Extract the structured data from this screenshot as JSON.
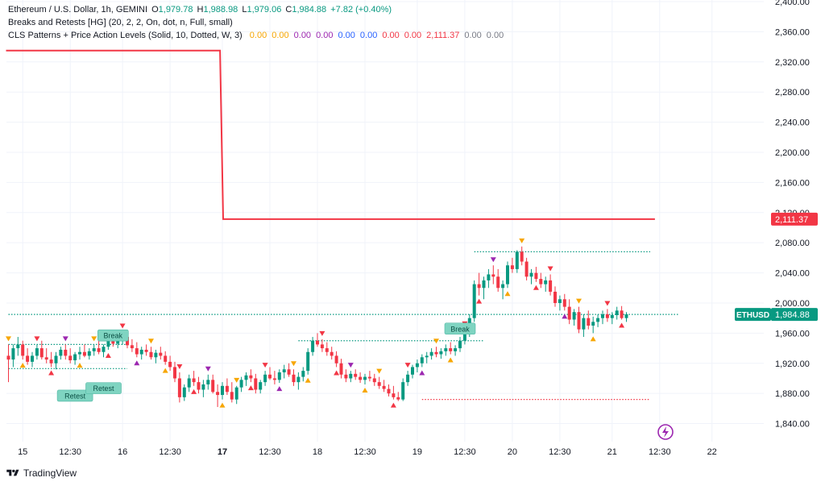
{
  "legend": {
    "title": "Ethereum / U.S. Dollar, 1h, GEMINI",
    "o_label": "O",
    "o": "1,979.78",
    "h_label": "H",
    "h": "1,988.98",
    "l_label": "L",
    "l": "1,979.06",
    "c_label": "C",
    "c": "1,984.88",
    "change": "+7.82 (+0.40%)",
    "indicator1": "Breaks and Retests [HG] (20, 2, 2, On, dot, n, Full, small)",
    "indicator2": "CLS Patterns + Price Action Levels (Solid, 10, Dotted, W, 3)",
    "indicator2_values": [
      {
        "v": "0.00",
        "color": "#f7a600"
      },
      {
        "v": "0.00",
        "color": "#f7a600"
      },
      {
        "v": "0.00",
        "color": "#9c27b0"
      },
      {
        "v": "0.00",
        "color": "#9c27b0"
      },
      {
        "v": "0.00",
        "color": "#2962ff"
      },
      {
        "v": "0.00",
        "color": "#2962ff"
      },
      {
        "v": "0.00",
        "color": "#f23645"
      },
      {
        "v": "0.00",
        "color": "#f23645"
      },
      {
        "v": "2,111.37",
        "color": "#f23645"
      },
      {
        "v": "0.00",
        "color": "#787b86"
      },
      {
        "v": "0.00",
        "color": "#787b86"
      }
    ]
  },
  "footer": {
    "brand": "TradingView"
  },
  "chart_data": {
    "type": "candlestick",
    "y_ticks": [
      "2,400.00",
      "2,360.00",
      "2,320.00",
      "2,280.00",
      "2,240.00",
      "2,200.00",
      "2,160.00",
      "2,120.00",
      "2,080.00",
      "2,040.00",
      "2,000.00",
      "1,960.00",
      "1,920.00",
      "1,880.00",
      "1,840.00"
    ],
    "y_tick_values": [
      2400,
      2360,
      2320,
      2280,
      2240,
      2200,
      2160,
      2120,
      2080,
      2040,
      2000,
      1960,
      1920,
      1880,
      1840
    ],
    "ylim": [
      1816,
      2400
    ],
    "x_ticks": [
      {
        "label": "15",
        "idx": 3,
        "bold": false
      },
      {
        "label": "12:30",
        "idx": 13,
        "bold": false
      },
      {
        "label": "16",
        "idx": 24,
        "bold": false
      },
      {
        "label": "12:30",
        "idx": 34,
        "bold": false
      },
      {
        "label": "17",
        "idx": 45,
        "bold": true
      },
      {
        "label": "12:30",
        "idx": 55,
        "bold": false
      },
      {
        "label": "18",
        "idx": 65,
        "bold": false
      },
      {
        "label": "12:30",
        "idx": 75,
        "bold": false
      },
      {
        "label": "19",
        "idx": 86,
        "bold": false
      },
      {
        "label": "12:30",
        "idx": 96,
        "bold": false
      },
      {
        "label": "20",
        "idx": 106,
        "bold": false
      },
      {
        "label": "12:30",
        "idx": 116,
        "bold": false
      },
      {
        "label": "21",
        "idx": 127,
        "bold": false
      },
      {
        "label": "12:30",
        "idx": 137,
        "bold": false
      },
      {
        "label": "22",
        "idx": 148,
        "bold": false
      }
    ],
    "ohlc": [
      [
        1930,
        1945,
        1895,
        1925
      ],
      [
        1925,
        1945,
        1915,
        1940
      ],
      [
        1940,
        1955,
        1930,
        1945
      ],
      [
        1945,
        1950,
        1925,
        1930
      ],
      [
        1930,
        1940,
        1918,
        1922
      ],
      [
        1922,
        1935,
        1915,
        1930
      ],
      [
        1930,
        1945,
        1925,
        1940
      ],
      [
        1940,
        1950,
        1925,
        1928
      ],
      [
        1928,
        1940,
        1920,
        1925
      ],
      [
        1925,
        1935,
        1915,
        1920
      ],
      [
        1920,
        1935,
        1912,
        1930
      ],
      [
        1930,
        1942,
        1925,
        1938
      ],
      [
        1938,
        1945,
        1925,
        1930
      ],
      [
        1930,
        1940,
        1920,
        1924
      ],
      [
        1924,
        1935,
        1918,
        1932
      ],
      [
        1932,
        1942,
        1925,
        1935
      ],
      [
        1935,
        1945,
        1928,
        1930
      ],
      [
        1930,
        1940,
        1925,
        1936
      ],
      [
        1936,
        1945,
        1930,
        1940
      ],
      [
        1940,
        1950,
        1932,
        1935
      ],
      [
        1935,
        1945,
        1928,
        1942
      ],
      [
        1942,
        1955,
        1938,
        1950
      ],
      [
        1950,
        1958,
        1942,
        1946
      ],
      [
        1946,
        1956,
        1940,
        1952
      ],
      [
        1952,
        1962,
        1945,
        1955
      ],
      [
        1955,
        1960,
        1940,
        1944
      ],
      [
        1944,
        1952,
        1935,
        1940
      ],
      [
        1940,
        1948,
        1928,
        1932
      ],
      [
        1932,
        1942,
        1925,
        1938
      ],
      [
        1938,
        1945,
        1930,
        1935
      ],
      [
        1935,
        1942,
        1925,
        1928
      ],
      [
        1928,
        1938,
        1920,
        1934
      ],
      [
        1934,
        1942,
        1925,
        1930
      ],
      [
        1930,
        1936,
        1918,
        1922
      ],
      [
        1922,
        1930,
        1910,
        1915
      ],
      [
        1915,
        1922,
        1895,
        1900
      ],
      [
        1900,
        1908,
        1868,
        1875
      ],
      [
        1875,
        1892,
        1870,
        1888
      ],
      [
        1888,
        1905,
        1882,
        1900
      ],
      [
        1900,
        1910,
        1890,
        1895
      ],
      [
        1895,
        1902,
        1880,
        1885
      ],
      [
        1885,
        1898,
        1875,
        1892
      ],
      [
        1892,
        1905,
        1885,
        1898
      ],
      [
        1898,
        1905,
        1880,
        1882
      ],
      [
        1882,
        1892,
        1862,
        1878
      ],
      [
        1878,
        1895,
        1872,
        1890
      ],
      [
        1890,
        1900,
        1878,
        1882
      ],
      [
        1882,
        1895,
        1868,
        1872
      ],
      [
        1872,
        1890,
        1866,
        1888
      ],
      [
        1888,
        1902,
        1882,
        1898
      ],
      [
        1898,
        1908,
        1890,
        1904
      ],
      [
        1904,
        1912,
        1895,
        1900
      ],
      [
        1900,
        1906,
        1880,
        1885
      ],
      [
        1885,
        1898,
        1880,
        1895
      ],
      [
        1895,
        1910,
        1890,
        1905
      ],
      [
        1905,
        1915,
        1898,
        1900
      ],
      [
        1900,
        1910,
        1892,
        1898
      ],
      [
        1898,
        1912,
        1894,
        1908
      ],
      [
        1908,
        1918,
        1900,
        1912
      ],
      [
        1912,
        1920,
        1902,
        1905
      ],
      [
        1905,
        1912,
        1890,
        1895
      ],
      [
        1895,
        1908,
        1885,
        1902
      ],
      [
        1902,
        1915,
        1896,
        1910
      ],
      [
        1910,
        1940,
        1905,
        1935
      ],
      [
        1935,
        1955,
        1930,
        1950
      ],
      [
        1950,
        1960,
        1942,
        1945
      ],
      [
        1945,
        1952,
        1935,
        1940
      ],
      [
        1940,
        1948,
        1930,
        1935
      ],
      [
        1935,
        1942,
        1925,
        1930
      ],
      [
        1930,
        1936,
        1915,
        1920
      ],
      [
        1920,
        1926,
        1900,
        1905
      ],
      [
        1905,
        1912,
        1895,
        1900
      ],
      [
        1900,
        1910,
        1895,
        1906
      ],
      [
        1906,
        1912,
        1898,
        1902
      ],
      [
        1902,
        1908,
        1894,
        1898
      ],
      [
        1898,
        1906,
        1892,
        1902
      ],
      [
        1902,
        1910,
        1896,
        1900
      ],
      [
        1900,
        1906,
        1890,
        1895
      ],
      [
        1895,
        1902,
        1886,
        1890
      ],
      [
        1890,
        1898,
        1882,
        1886
      ],
      [
        1886,
        1892,
        1876,
        1880
      ],
      [
        1880,
        1890,
        1872,
        1875
      ],
      [
        1875,
        1882,
        1870,
        1872
      ],
      [
        1872,
        1900,
        1870,
        1895
      ],
      [
        1895,
        1910,
        1890,
        1905
      ],
      [
        1905,
        1918,
        1900,
        1915
      ],
      [
        1915,
        1925,
        1908,
        1920
      ],
      [
        1920,
        1932,
        1915,
        1928
      ],
      [
        1928,
        1935,
        1920,
        1930
      ],
      [
        1930,
        1940,
        1925,
        1935
      ],
      [
        1935,
        1942,
        1928,
        1932
      ],
      [
        1932,
        1940,
        1926,
        1936
      ],
      [
        1936,
        1945,
        1930,
        1940
      ],
      [
        1940,
        1948,
        1932,
        1936
      ],
      [
        1936,
        1944,
        1930,
        1940
      ],
      [
        1940,
        1955,
        1935,
        1950
      ],
      [
        1950,
        1965,
        1945,
        1960
      ],
      [
        1960,
        1985,
        1955,
        1980
      ],
      [
        1980,
        2030,
        1975,
        2025
      ],
      [
        2025,
        2040,
        2010,
        2020
      ],
      [
        2020,
        2035,
        2005,
        2030
      ],
      [
        2030,
        2045,
        2020,
        2038
      ],
      [
        2038,
        2050,
        2025,
        2035
      ],
      [
        2035,
        2045,
        2015,
        2020
      ],
      [
        2020,
        2030,
        2005,
        2025
      ],
      [
        2025,
        2055,
        2020,
        2050
      ],
      [
        2050,
        2060,
        2040,
        2045
      ],
      [
        2045,
        2070,
        2040,
        2068
      ],
      [
        2068,
        2075,
        2050,
        2055
      ],
      [
        2055,
        2060,
        2030,
        2035
      ],
      [
        2035,
        2045,
        2025,
        2040
      ],
      [
        2040,
        2048,
        2028,
        2032
      ],
      [
        2032,
        2040,
        2020,
        2025
      ],
      [
        2025,
        2035,
        2015,
        2030
      ],
      [
        2030,
        2038,
        2010,
        2015
      ],
      [
        2015,
        2022,
        1995,
        2000
      ],
      [
        2000,
        2010,
        1990,
        2005
      ],
      [
        2005,
        2012,
        1990,
        1995
      ],
      [
        1995,
        2005,
        1972,
        1978
      ],
      [
        1978,
        1992,
        1970,
        1988
      ],
      [
        1988,
        1995,
        1960,
        1965
      ],
      [
        1965,
        1985,
        1955,
        1980
      ],
      [
        1980,
        1990,
        1965,
        1970
      ],
      [
        1970,
        1982,
        1960,
        1975
      ],
      [
        1975,
        1985,
        1968,
        1980
      ],
      [
        1980,
        1990,
        1972,
        1985
      ],
      [
        1985,
        1992,
        1975,
        1980
      ],
      [
        1980,
        1988,
        1972,
        1984
      ],
      [
        1984,
        1995,
        1978,
        1990
      ],
      [
        1990,
        1996,
        1978,
        1980
      ],
      [
        1980,
        1988,
        1975,
        1985
      ]
    ],
    "ma_line": [
      {
        "from": 0,
        "to": 44,
        "value": 2335
      },
      {
        "from": 45,
        "to": 136,
        "value": 2111.37
      }
    ],
    "price_labels": [
      {
        "text": "2,111.37",
        "value": 2111.37,
        "color": "#f23645"
      },
      {
        "text": "1,984.88",
        "value": 1984.88,
        "color": "#089981",
        "symbol": "ETHUSD"
      }
    ],
    "dotted_levels": [
      {
        "from": 98,
        "to": 135,
        "value": 2068,
        "color": "#089981"
      },
      {
        "from": 87,
        "to": 135,
        "value": 1872,
        "color": "#f23645"
      },
      {
        "from": 61,
        "to": 100,
        "value": 1950,
        "color": "#089981"
      },
      {
        "from": 0,
        "to": 25,
        "value": 1945,
        "color": "#089981"
      },
      {
        "from": 0,
        "to": 25,
        "value": 1913,
        "color": "#089981"
      },
      {
        "from": 0,
        "to": 141,
        "value": 1984.88,
        "color": "#089981"
      }
    ],
    "annotations": [
      {
        "text": "Retest",
        "idx": 14,
        "value": 1877
      },
      {
        "text": "Retest",
        "idx": 20,
        "value": 1887
      },
      {
        "text": "Break",
        "idx": 22,
        "value": 1957
      },
      {
        "text": "Break",
        "idx": 95,
        "value": 1966
      }
    ]
  }
}
